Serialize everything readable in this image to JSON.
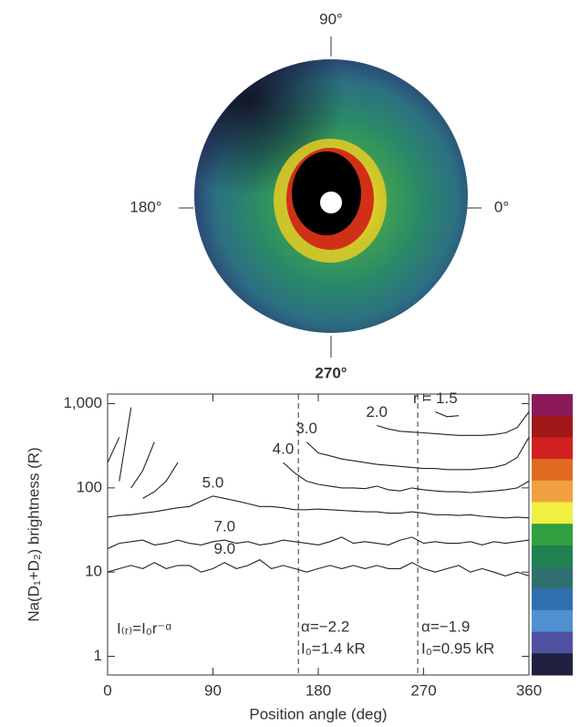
{
  "image": {
    "labels": [
      "90°",
      "180°",
      "0°",
      "270°"
    ]
  },
  "chart_data": {
    "type": "line",
    "xlabel": "Position angle (deg)",
    "ylabel": "Na(D₁+D₂) brightness (R)",
    "x": [
      0,
      10,
      20,
      30,
      40,
      50,
      60,
      70,
      80,
      90,
      100,
      110,
      120,
      130,
      140,
      150,
      160,
      170,
      180,
      190,
      200,
      210,
      220,
      230,
      240,
      250,
      260,
      270,
      280,
      290,
      300,
      310,
      320,
      330,
      340,
      350,
      360
    ],
    "xlim": [
      0,
      360
    ],
    "xticks": [
      0,
      90,
      180,
      270,
      360
    ],
    "ylim": [
      0.6,
      1300
    ],
    "yticks": [
      1,
      10,
      100,
      {
        "value": 1000,
        "label": "1,000"
      }
    ],
    "log_y": true,
    "vlines": [
      163,
      265
    ],
    "annotations": [
      "I₍ᵣ₎=I₀r⁻ᵅ",
      "α=−2.2",
      "I₀=1.4 kR",
      "α=−1.9",
      "I₀=0.95 kR"
    ],
    "series": [
      {
        "name": "r = 1.5",
        "color": "#222222",
        "values": [
          200,
          400,
          null,
          null,
          null,
          null,
          null,
          null,
          null,
          null,
          null,
          null,
          null,
          null,
          null,
          null,
          null,
          null,
          null,
          null,
          null,
          null,
          null,
          null,
          null,
          null,
          null,
          null,
          800,
          700,
          720,
          null,
          null,
          null,
          null,
          null,
          null
        ]
      },
      {
        "name": "2.0",
        "color": "#222222",
        "values": [
          null,
          120,
          900,
          null,
          null,
          null,
          null,
          null,
          null,
          null,
          null,
          null,
          null,
          null,
          null,
          null,
          null,
          null,
          null,
          null,
          null,
          null,
          null,
          550,
          500,
          470,
          460,
          450,
          440,
          430,
          420,
          420,
          420,
          430,
          450,
          520,
          800
        ]
      },
      {
        "name": "3.0",
        "color": "#222222",
        "values": [
          null,
          null,
          100,
          160,
          350,
          null,
          null,
          null,
          null,
          null,
          null,
          null,
          null,
          null,
          null,
          null,
          null,
          350,
          260,
          240,
          220,
          210,
          200,
          190,
          185,
          180,
          175,
          170,
          170,
          165,
          165,
          165,
          170,
          175,
          190,
          230,
          400
        ]
      },
      {
        "name": "4.0",
        "color": "#222222",
        "values": [
          null,
          null,
          null,
          75,
          90,
          120,
          200,
          null,
          null,
          null,
          null,
          null,
          null,
          null,
          null,
          200,
          150,
          120,
          110,
          105,
          100,
          100,
          98,
          105,
          95,
          92,
          100,
          95,
          92,
          90,
          90,
          88,
          90,
          92,
          95,
          100,
          120
        ]
      },
      {
        "name": "5.0",
        "color": "#222222",
        "values": [
          45,
          47,
          48,
          50,
          52,
          55,
          58,
          60,
          70,
          80,
          75,
          70,
          65,
          60,
          60,
          58,
          55,
          55,
          56,
          55,
          54,
          53,
          52,
          52,
          50,
          50,
          52,
          50,
          48,
          48,
          47,
          48,
          46,
          45,
          44,
          45,
          44
        ]
      },
      {
        "name": "7.0",
        "color": "#222222",
        "values": [
          19,
          22,
          23,
          24,
          21,
          22,
          24,
          22,
          21,
          23,
          24,
          22,
          23,
          21,
          22,
          24,
          23,
          22,
          21,
          23,
          26,
          22,
          23,
          22,
          21,
          24,
          26,
          22,
          23,
          22,
          22,
          23,
          21,
          23,
          22,
          23,
          24
        ]
      },
      {
        "name": "9.0",
        "color": "#222222",
        "values": [
          10,
          11,
          12,
          11,
          13,
          11,
          12,
          12,
          10,
          11,
          13,
          11,
          12,
          14,
          11,
          12,
          11,
          10,
          11,
          12,
          11,
          12,
          11,
          12,
          11,
          11,
          13,
          11,
          10,
          11,
          12,
          10,
          11,
          10,
          9,
          10,
          9
        ]
      }
    ]
  }
}
